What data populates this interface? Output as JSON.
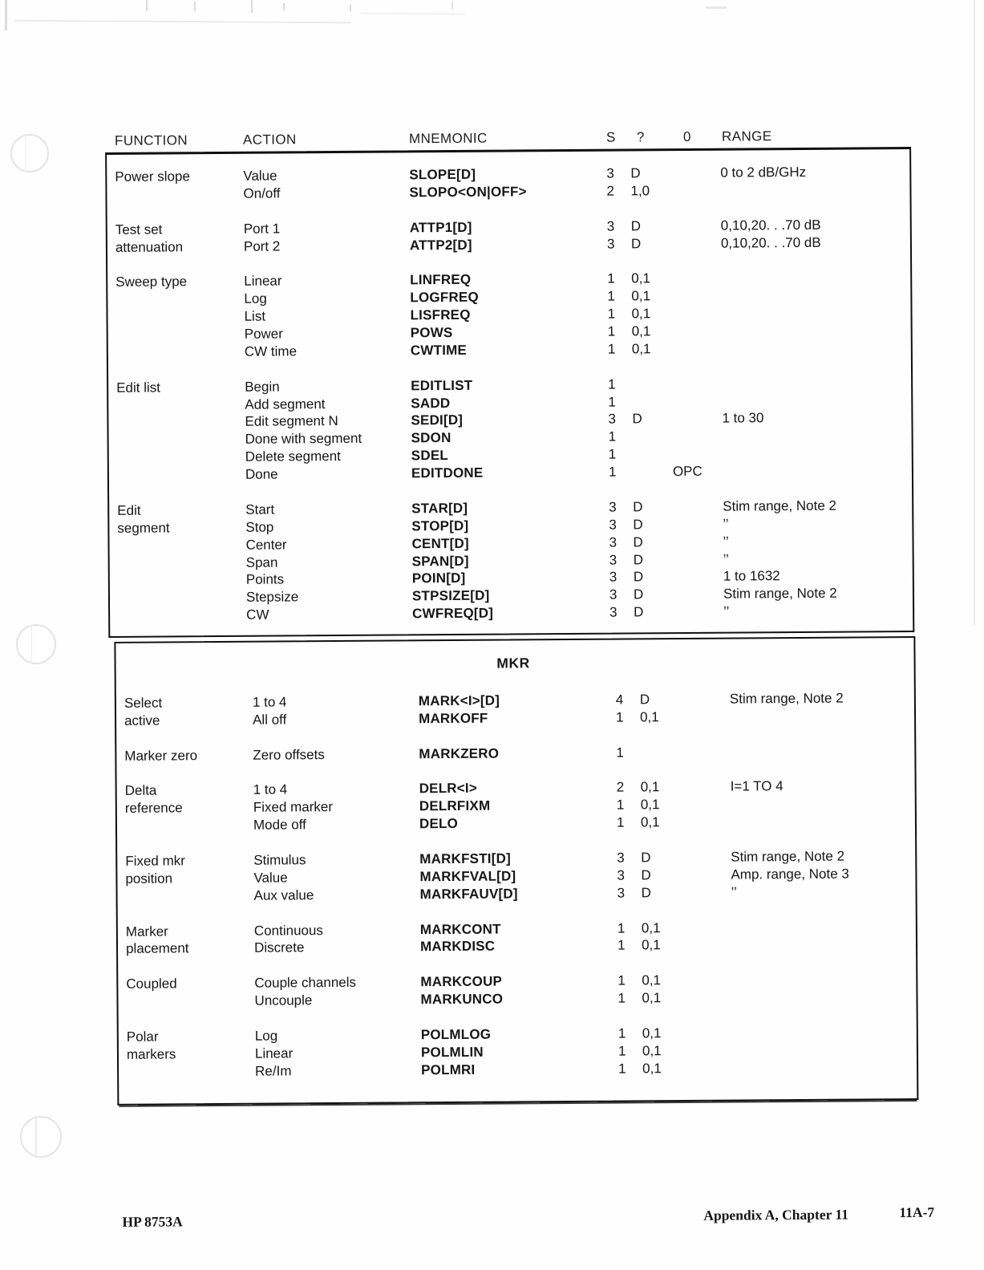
{
  "header": {
    "columns": [
      "FUNCTION",
      "ACTION",
      "MNEMONIC",
      "S",
      "?",
      "0",
      "RANGE"
    ]
  },
  "table1": {
    "groups": [
      {
        "rows": [
          {
            "function": "Power slope",
            "action": "Value",
            "mnemonic": "SLOPE[D]",
            "s": "3",
            "q": "D",
            "o": "",
            "range": "0 to 2 dB/GHz"
          },
          {
            "function": "",
            "action": "On/off",
            "mnemonic": "SLOPO<ON|OFF>",
            "s": "2",
            "q": "1,0",
            "o": "",
            "range": ""
          }
        ]
      },
      {
        "rows": [
          {
            "function": "Test set",
            "action": "Port 1",
            "mnemonic": "ATTP1[D]",
            "s": "3",
            "q": "D",
            "o": "",
            "range": "0,10,20. . .70 dB"
          },
          {
            "function": "attenuation",
            "action": "Port 2",
            "mnemonic": "ATTP2[D]",
            "s": "3",
            "q": "D",
            "o": "",
            "range": "0,10,20. . .70 dB"
          }
        ]
      },
      {
        "rows": [
          {
            "function": "Sweep type",
            "action": "Linear",
            "mnemonic": "LINFREQ",
            "s": "1",
            "q": "0,1",
            "o": "",
            "range": ""
          },
          {
            "function": "",
            "action": "Log",
            "mnemonic": "LOGFREQ",
            "s": "1",
            "q": "0,1",
            "o": "",
            "range": ""
          },
          {
            "function": "",
            "action": "List",
            "mnemonic": "LISFREQ",
            "s": "1",
            "q": "0,1",
            "o": "",
            "range": ""
          },
          {
            "function": "",
            "action": "Power",
            "mnemonic": "POWS",
            "s": "1",
            "q": "0,1",
            "o": "",
            "range": ""
          },
          {
            "function": "",
            "action": "CW time",
            "mnemonic": "CWTIME",
            "s": "1",
            "q": "0,1",
            "o": "",
            "range": ""
          }
        ]
      },
      {
        "rows": [
          {
            "function": "Edit list",
            "action": "Begin",
            "mnemonic": "EDITLIST",
            "s": "1",
            "q": "",
            "o": "",
            "range": ""
          },
          {
            "function": "",
            "action": "Add segment",
            "mnemonic": "SADD",
            "s": "1",
            "q": "",
            "o": "",
            "range": ""
          },
          {
            "function": "",
            "action": "Edit segment N",
            "mnemonic": "SEDI[D]",
            "s": "3",
            "q": "D",
            "o": "",
            "range": "1 to 30"
          },
          {
            "function": "",
            "action": "Done with segment",
            "mnemonic": "SDON",
            "s": "1",
            "q": "",
            "o": "",
            "range": ""
          },
          {
            "function": "",
            "action": "Delete segment",
            "mnemonic": "SDEL",
            "s": "1",
            "q": "",
            "o": "",
            "range": ""
          },
          {
            "function": "",
            "action": "Done",
            "mnemonic": "EDITDONE",
            "s": "1",
            "q": "",
            "o": "OPC",
            "range": ""
          }
        ]
      },
      {
        "rows": [
          {
            "function": "Edit",
            "action": "Start",
            "mnemonic": "STAR[D]",
            "s": "3",
            "q": "D",
            "o": "",
            "range": "Stim range, Note 2"
          },
          {
            "function": "segment",
            "action": "Stop",
            "mnemonic": "STOP[D]",
            "s": "3",
            "q": "D",
            "o": "",
            "range": "’’"
          },
          {
            "function": "",
            "action": "Center",
            "mnemonic": "CENT[D]",
            "s": "3",
            "q": "D",
            "o": "",
            "range": "’’"
          },
          {
            "function": "",
            "action": "Span",
            "mnemonic": "SPAN[D]",
            "s": "3",
            "q": "D",
            "o": "",
            "range": "’’"
          },
          {
            "function": "",
            "action": "Points",
            "mnemonic": "POIN[D]",
            "s": "3",
            "q": "D",
            "o": "",
            "range": "1 to 1632"
          },
          {
            "function": "",
            "action": "Stepsize",
            "mnemonic": "STPSIZE[D]",
            "s": "3",
            "q": "D",
            "o": "",
            "range": "Stim range, Note 2"
          },
          {
            "function": "",
            "action": "CW",
            "mnemonic": "CWFREQ[D]",
            "s": "3",
            "q": "D",
            "o": "",
            "range": "’’"
          }
        ]
      }
    ]
  },
  "table2": {
    "title": "MKR",
    "groups": [
      {
        "rows": [
          {
            "function": "Select",
            "action": "1 to 4",
            "mnemonic": "MARK<I>[D]",
            "s": "4",
            "q": "D",
            "o": "",
            "range": "Stim range, Note 2"
          },
          {
            "function": "active",
            "action": "All off",
            "mnemonic": "MARKOFF",
            "s": "1",
            "q": "0,1",
            "o": "",
            "range": ""
          }
        ]
      },
      {
        "rows": [
          {
            "function": "Marker zero",
            "action": "Zero offsets",
            "mnemonic": "MARKZERO",
            "s": "1",
            "q": "",
            "o": "",
            "range": ""
          }
        ]
      },
      {
        "rows": [
          {
            "function": "Delta",
            "action": "1 to 4",
            "mnemonic": "DELR<I>",
            "s": "2",
            "q": "0,1",
            "o": "",
            "range": "I=1 TO 4"
          },
          {
            "function": "reference",
            "action": "Fixed marker",
            "mnemonic": "DELRFIXM",
            "s": "1",
            "q": "0,1",
            "o": "",
            "range": ""
          },
          {
            "function": "",
            "action": "Mode off",
            "mnemonic": "DELO",
            "s": "1",
            "q": "0,1",
            "o": "",
            "range": ""
          }
        ]
      },
      {
        "rows": [
          {
            "function": "Fixed mkr",
            "action": "Stimulus",
            "mnemonic": "MARKFSTI[D]",
            "s": "3",
            "q": "D",
            "o": "",
            "range": "Stim range, Note 2"
          },
          {
            "function": "position",
            "action": "Value",
            "mnemonic": "MARKFVAL[D]",
            "s": "3",
            "q": "D",
            "o": "",
            "range": "Amp. range, Note 3"
          },
          {
            "function": "",
            "action": "Aux value",
            "mnemonic": "MARKFAUV[D]",
            "s": "3",
            "q": "D",
            "o": "",
            "range": "’’"
          }
        ]
      },
      {
        "rows": [
          {
            "function": "Marker",
            "action": "Continuous",
            "mnemonic": "MARKCONT",
            "s": "1",
            "q": "0,1",
            "o": "",
            "range": ""
          },
          {
            "function": "placement",
            "action": "Discrete",
            "mnemonic": "MARKDISC",
            "s": "1",
            "q": "0,1",
            "o": "",
            "range": ""
          }
        ]
      },
      {
        "rows": [
          {
            "function": "Coupled",
            "action": "Couple channels",
            "mnemonic": "MARKCOUP",
            "s": "1",
            "q": "0,1",
            "o": "",
            "range": ""
          },
          {
            "function": "",
            "action": "Uncouple",
            "mnemonic": "MARKUNCO",
            "s": "1",
            "q": "0,1",
            "o": "",
            "range": ""
          }
        ]
      },
      {
        "rows": [
          {
            "function": "Polar",
            "action": "Log",
            "mnemonic": "POLMLOG",
            "s": "1",
            "q": "0,1",
            "o": "",
            "range": ""
          },
          {
            "function": "markers",
            "action": "Linear",
            "mnemonic": "POLMLIN",
            "s": "1",
            "q": "0,1",
            "o": "",
            "range": ""
          },
          {
            "function": "",
            "action": "Re/Im",
            "mnemonic": "POLMRI",
            "s": "1",
            "q": "0,1",
            "o": "",
            "range": ""
          }
        ]
      }
    ]
  },
  "footer": {
    "left": "HP 8753A",
    "appendix": "Appendix A, Chapter 11",
    "page_number": "11A-7"
  }
}
